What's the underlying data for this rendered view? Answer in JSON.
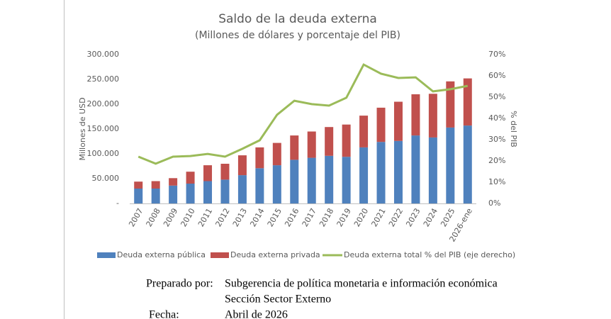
{
  "chart_data": {
    "type": "bar-line",
    "title": "Saldo de la deuda externa",
    "subtitle": "(Millones de dólares y porcentaje del PIB)",
    "y_label": "Millones de USD",
    "y2_label": "% del PIB",
    "categories": [
      "2007",
      "2008",
      "2009",
      "2010",
      "2011",
      "2012",
      "2013",
      "2014",
      "2015",
      "2016",
      "2017",
      "2018",
      "2019",
      "2020",
      "2021",
      "2022",
      "2023",
      "2024",
      "2025",
      "2026-ene"
    ],
    "series": [
      {
        "name": "Deuda externa pública",
        "color": "#4f81bd",
        "values": [
          30000,
          30000,
          36000,
          40000,
          45000,
          48000,
          57000,
          71000,
          77000,
          88000,
          92000,
          96000,
          94000,
          113000,
          124000,
          126000,
          137000,
          133000,
          153000,
          157000
        ]
      },
      {
        "name": "Deuda externa privada",
        "color": "#c0504d",
        "values": [
          14000,
          15000,
          15000,
          24000,
          32000,
          32000,
          40000,
          42000,
          45000,
          49000,
          53000,
          58000,
          65000,
          64000,
          69000,
          79000,
          83000,
          88000,
          93000,
          95000
        ]
      },
      {
        "name": "Deuda externa total % del PIB (eje derecho)",
        "color": "#9bbb59",
        "axis": "y2",
        "values": [
          22,
          18.7,
          22,
          22.3,
          23.3,
          22,
          25.7,
          29.7,
          41.7,
          48.3,
          46.7,
          46,
          49.7,
          65.3,
          61,
          59,
          59.3,
          52.7,
          53.7,
          55.3
        ]
      }
    ],
    "ylim": [
      0,
      300000
    ],
    "yticks": [
      {
        "value": 0,
        "label": "-"
      },
      {
        "value": 50000,
        "label": "50.000"
      },
      {
        "value": 100000,
        "label": "100.000"
      },
      {
        "value": 150000,
        "label": "150.000"
      },
      {
        "value": 200000,
        "label": "200.000"
      },
      {
        "value": 250000,
        "label": "250.000"
      },
      {
        "value": 300000,
        "label": "300.000"
      }
    ],
    "y2lim": [
      0,
      70
    ],
    "y2ticks": [
      {
        "value": 0,
        "label": "0%"
      },
      {
        "value": 10,
        "label": "10%"
      },
      {
        "value": 20,
        "label": "20%"
      },
      {
        "value": 30,
        "label": "30%"
      },
      {
        "value": 40,
        "label": "40%"
      },
      {
        "value": 50,
        "label": "50%"
      },
      {
        "value": 60,
        "label": "60%"
      },
      {
        "value": 70,
        "label": "70%"
      }
    ],
    "grid": false
  },
  "footer": {
    "prepared_label": "Preparado por:",
    "prepared_lines": [
      "Subgerencia de política monetaria e información económica",
      "Sección Sector Externo"
    ],
    "date_label": "Fecha:",
    "date": "Abril de 2026"
  }
}
